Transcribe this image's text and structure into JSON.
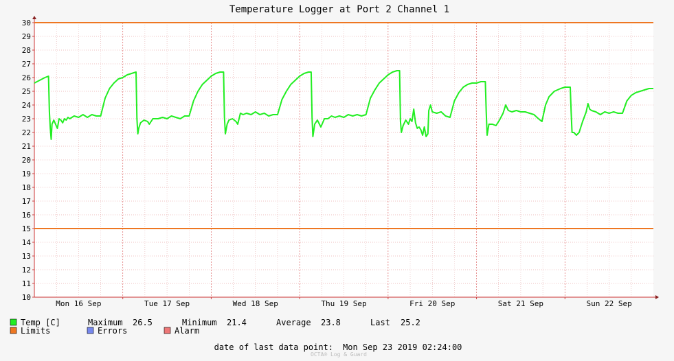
{
  "chart_data": {
    "type": "line",
    "title": "Temperature Logger at Port 2 Channel 1",
    "ylim": [
      10,
      30
    ],
    "y_ticks": [
      10,
      11,
      12,
      13,
      14,
      15,
      16,
      17,
      18,
      19,
      20,
      21,
      22,
      23,
      24,
      25,
      26,
      27,
      28,
      29,
      30
    ],
    "xlim_days": [
      0,
      7
    ],
    "day_labels": [
      "Mon 16 Sep",
      "Tue 17 Sep",
      "Wed 18 Sep",
      "Thu 19 Sep",
      "Fri 20 Sep",
      "Sat 21 Sep",
      "Sun 22 Sep"
    ],
    "grid": true,
    "series": [
      {
        "name": "Temp [C]",
        "color": "#22ee22",
        "points": [
          [
            0.0,
            25.6
          ],
          [
            0.06,
            25.8
          ],
          [
            0.12,
            26.0
          ],
          [
            0.16,
            26.1
          ],
          [
            0.17,
            23.5
          ],
          [
            0.18,
            22.3
          ],
          [
            0.19,
            21.5
          ],
          [
            0.2,
            22.6
          ],
          [
            0.22,
            22.9
          ],
          [
            0.24,
            22.6
          ],
          [
            0.26,
            22.3
          ],
          [
            0.28,
            23.0
          ],
          [
            0.3,
            22.9
          ],
          [
            0.32,
            22.7
          ],
          [
            0.34,
            23.0
          ],
          [
            0.36,
            22.9
          ],
          [
            0.38,
            23.1
          ],
          [
            0.4,
            23.0
          ],
          [
            0.45,
            23.2
          ],
          [
            0.5,
            23.1
          ],
          [
            0.55,
            23.3
          ],
          [
            0.6,
            23.1
          ],
          [
            0.65,
            23.3
          ],
          [
            0.7,
            23.2
          ],
          [
            0.75,
            23.2
          ],
          [
            0.8,
            24.5
          ],
          [
            0.85,
            25.2
          ],
          [
            0.9,
            25.6
          ],
          [
            0.95,
            25.9
          ],
          [
            1.0,
            26.0
          ],
          [
            1.05,
            26.2
          ],
          [
            1.1,
            26.3
          ],
          [
            1.15,
            26.4
          ],
          [
            1.16,
            23.0
          ],
          [
            1.17,
            21.9
          ],
          [
            1.18,
            22.3
          ],
          [
            1.2,
            22.7
          ],
          [
            1.24,
            22.9
          ],
          [
            1.28,
            22.8
          ],
          [
            1.3,
            22.6
          ],
          [
            1.34,
            23.0
          ],
          [
            1.4,
            23.0
          ],
          [
            1.45,
            23.1
          ],
          [
            1.5,
            23.0
          ],
          [
            1.55,
            23.2
          ],
          [
            1.6,
            23.1
          ],
          [
            1.65,
            23.0
          ],
          [
            1.7,
            23.2
          ],
          [
            1.75,
            23.2
          ],
          [
            1.8,
            24.3
          ],
          [
            1.85,
            25.0
          ],
          [
            1.9,
            25.5
          ],
          [
            1.95,
            25.8
          ],
          [
            2.0,
            26.1
          ],
          [
            2.05,
            26.3
          ],
          [
            2.1,
            26.4
          ],
          [
            2.14,
            26.4
          ],
          [
            2.15,
            23.1
          ],
          [
            2.16,
            21.9
          ],
          [
            2.18,
            22.6
          ],
          [
            2.2,
            22.9
          ],
          [
            2.24,
            23.0
          ],
          [
            2.28,
            22.8
          ],
          [
            2.3,
            22.6
          ],
          [
            2.33,
            23.4
          ],
          [
            2.36,
            23.3
          ],
          [
            2.4,
            23.4
          ],
          [
            2.45,
            23.3
          ],
          [
            2.5,
            23.5
          ],
          [
            2.55,
            23.3
          ],
          [
            2.6,
            23.4
          ],
          [
            2.65,
            23.2
          ],
          [
            2.7,
            23.3
          ],
          [
            2.75,
            23.3
          ],
          [
            2.8,
            24.4
          ],
          [
            2.85,
            25.0
          ],
          [
            2.9,
            25.5
          ],
          [
            2.95,
            25.8
          ],
          [
            3.0,
            26.1
          ],
          [
            3.05,
            26.3
          ],
          [
            3.1,
            26.4
          ],
          [
            3.13,
            26.4
          ],
          [
            3.14,
            23.1
          ],
          [
            3.15,
            21.7
          ],
          [
            3.17,
            22.6
          ],
          [
            3.2,
            22.9
          ],
          [
            3.24,
            22.4
          ],
          [
            3.28,
            23.0
          ],
          [
            3.32,
            23.0
          ],
          [
            3.36,
            23.2
          ],
          [
            3.4,
            23.1
          ],
          [
            3.45,
            23.2
          ],
          [
            3.5,
            23.1
          ],
          [
            3.55,
            23.3
          ],
          [
            3.6,
            23.2
          ],
          [
            3.65,
            23.3
          ],
          [
            3.7,
            23.2
          ],
          [
            3.75,
            23.3
          ],
          [
            3.8,
            24.5
          ],
          [
            3.85,
            25.1
          ],
          [
            3.9,
            25.6
          ],
          [
            3.95,
            25.9
          ],
          [
            4.0,
            26.2
          ],
          [
            4.05,
            26.4
          ],
          [
            4.1,
            26.5
          ],
          [
            4.13,
            26.5
          ],
          [
            4.14,
            22.8
          ],
          [
            4.15,
            22.0
          ],
          [
            4.17,
            22.5
          ],
          [
            4.2,
            22.9
          ],
          [
            4.23,
            22.6
          ],
          [
            4.25,
            23.0
          ],
          [
            4.27,
            22.8
          ],
          [
            4.29,
            23.7
          ],
          [
            4.31,
            22.7
          ],
          [
            4.33,
            22.3
          ],
          [
            4.35,
            22.4
          ],
          [
            4.37,
            22.2
          ],
          [
            4.39,
            21.8
          ],
          [
            4.41,
            22.4
          ],
          [
            4.43,
            21.7
          ],
          [
            4.45,
            21.9
          ],
          [
            4.46,
            23.6
          ],
          [
            4.48,
            24.0
          ],
          [
            4.5,
            23.5
          ],
          [
            4.55,
            23.4
          ],
          [
            4.6,
            23.5
          ],
          [
            4.65,
            23.2
          ],
          [
            4.7,
            23.1
          ],
          [
            4.75,
            24.3
          ],
          [
            4.8,
            24.9
          ],
          [
            4.85,
            25.3
          ],
          [
            4.9,
            25.5
          ],
          [
            4.95,
            25.6
          ],
          [
            5.0,
            25.6
          ],
          [
            5.05,
            25.7
          ],
          [
            5.1,
            25.7
          ],
          [
            5.11,
            23.5
          ],
          [
            5.12,
            21.8
          ],
          [
            5.14,
            22.6
          ],
          [
            5.18,
            22.6
          ],
          [
            5.22,
            22.5
          ],
          [
            5.26,
            22.9
          ],
          [
            5.3,
            23.4
          ],
          [
            5.33,
            24.0
          ],
          [
            5.36,
            23.6
          ],
          [
            5.4,
            23.5
          ],
          [
            5.45,
            23.6
          ],
          [
            5.5,
            23.5
          ],
          [
            5.55,
            23.5
          ],
          [
            5.6,
            23.4
          ],
          [
            5.65,
            23.3
          ],
          [
            5.7,
            23.0
          ],
          [
            5.74,
            22.8
          ],
          [
            5.78,
            24.0
          ],
          [
            5.82,
            24.6
          ],
          [
            5.88,
            25.0
          ],
          [
            5.95,
            25.2
          ],
          [
            6.0,
            25.3
          ],
          [
            6.06,
            25.3
          ],
          [
            6.07,
            23.5
          ],
          [
            6.08,
            22.0
          ],
          [
            6.1,
            22.0
          ],
          [
            6.13,
            21.8
          ],
          [
            6.16,
            22.0
          ],
          [
            6.2,
            22.8
          ],
          [
            6.24,
            23.5
          ],
          [
            6.26,
            24.1
          ],
          [
            6.28,
            23.7
          ],
          [
            6.3,
            23.6
          ],
          [
            6.35,
            23.5
          ],
          [
            6.4,
            23.3
          ],
          [
            6.45,
            23.5
          ],
          [
            6.5,
            23.4
          ],
          [
            6.55,
            23.5
          ],
          [
            6.6,
            23.4
          ],
          [
            6.65,
            23.4
          ],
          [
            6.7,
            24.3
          ],
          [
            6.75,
            24.7
          ],
          [
            6.8,
            24.9
          ],
          [
            6.85,
            25.0
          ],
          [
            6.9,
            25.1
          ],
          [
            6.95,
            25.2
          ],
          [
            7.0,
            25.2
          ]
        ]
      },
      {
        "name": "Limits",
        "color": "#ee7722",
        "values": [
          15,
          30
        ]
      },
      {
        "name": "Errors",
        "color": "#7788ee",
        "values": []
      },
      {
        "name": "Alarm",
        "color": "#ee7777",
        "values": []
      }
    ],
    "stats": [
      {
        "label": "Maximum",
        "value": "26.5"
      },
      {
        "label": "Minimum",
        "value": "21.4"
      },
      {
        "label": "Average",
        "value": "23.8"
      },
      {
        "label": "Last",
        "value": "25.2"
      }
    ],
    "footer_label": "date of last data point:",
    "footer_value": "Mon Sep 23 2019 02:24:00",
    "watermark": "OCTA® Log & Guard"
  }
}
